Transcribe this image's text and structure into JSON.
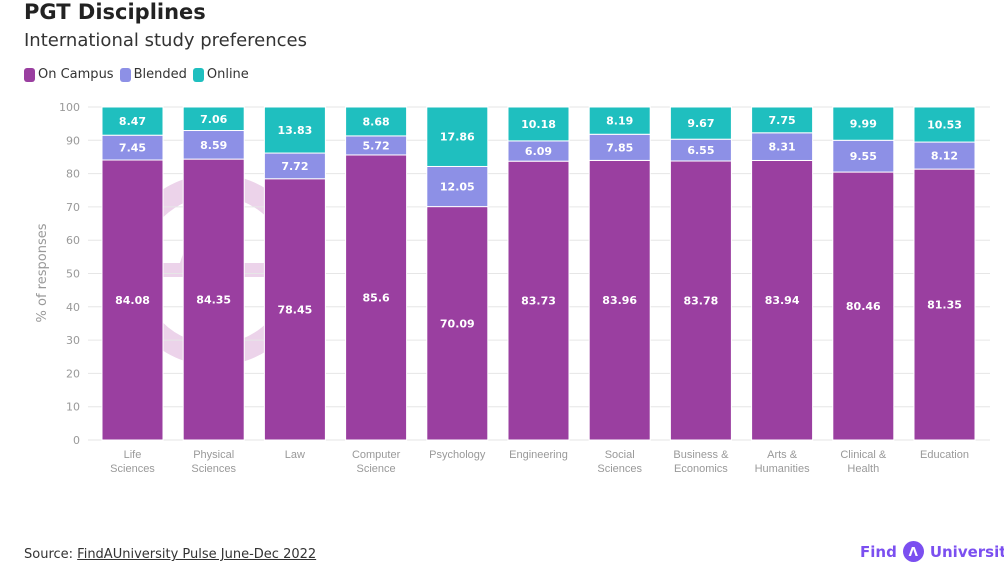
{
  "title": "PGT Disciplines",
  "subtitle": "International study preferences",
  "source_prefix": "Source: ",
  "source_link": "FindAUniversity Pulse June-Dec 2022",
  "logo": {
    "left": "Find",
    "right": "University",
    "mark": "Λ"
  },
  "watermark": "Pulse",
  "chart_data": {
    "type": "bar",
    "stacked": true,
    "title": "PGT Disciplines",
    "subtitle": "International study preferences",
    "xlabel": "",
    "ylabel": "% of responses",
    "ylim": [
      0,
      100
    ],
    "yticks": [
      0,
      10,
      20,
      30,
      40,
      50,
      60,
      70,
      80,
      90,
      100
    ],
    "grid": true,
    "legend": "top-left",
    "categories": [
      "Life Sciences",
      "Physical Sciences",
      "Law",
      "Computer Science",
      "Psychology",
      "Engineering",
      "Social Sciences",
      "Business & Economics",
      "Arts & Humanities",
      "Clinical & Health",
      "Education"
    ],
    "series": [
      {
        "name": "On Campus",
        "color": "#9a3fa0",
        "values": [
          84.08,
          84.35,
          78.45,
          85.6,
          70.09,
          83.73,
          83.96,
          83.78,
          83.94,
          80.46,
          81.35
        ]
      },
      {
        "name": "Blended",
        "color": "#8d90e6",
        "values": [
          7.45,
          8.59,
          7.72,
          5.72,
          12.05,
          6.09,
          7.85,
          6.55,
          8.31,
          9.55,
          8.12
        ]
      },
      {
        "name": "Online",
        "color": "#1fbfbf",
        "values": [
          8.47,
          7.06,
          13.83,
          8.68,
          17.86,
          10.18,
          8.19,
          9.67,
          7.75,
          9.99,
          10.53
        ]
      }
    ]
  }
}
